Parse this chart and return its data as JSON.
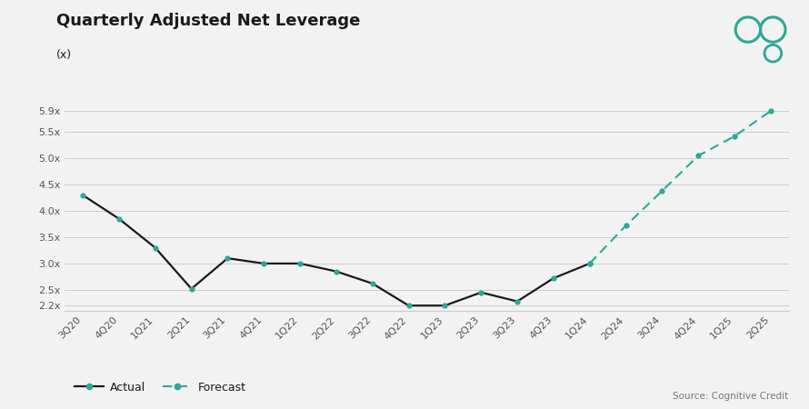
{
  "title": "Quarterly Adjusted Net Leverage",
  "subtitle": "(x)",
  "source": "Source: Cognitive Credit",
  "actual_labels": [
    "3Q20",
    "4Q20",
    "1Q21",
    "2Q21",
    "3Q21",
    "4Q21",
    "1Q22",
    "2Q22",
    "3Q22",
    "4Q22",
    "1Q23",
    "2Q23",
    "3Q23",
    "4Q23",
    "1Q24"
  ],
  "actual_values": [
    4.3,
    3.85,
    3.3,
    2.52,
    3.1,
    3.0,
    3.0,
    2.85,
    2.62,
    2.2,
    2.2,
    2.45,
    2.28,
    2.72,
    3.0
  ],
  "forecast_labels": [
    "1Q24",
    "2Q24",
    "3Q24",
    "4Q24",
    "1Q25",
    "2Q25"
  ],
  "forecast_values": [
    3.0,
    3.72,
    4.38,
    5.05,
    5.42,
    5.9
  ],
  "all_labels": [
    "3Q20",
    "4Q20",
    "1Q21",
    "2Q21",
    "3Q21",
    "4Q21",
    "1Q22",
    "2Q22",
    "3Q22",
    "4Q22",
    "1Q23",
    "2Q23",
    "3Q23",
    "4Q23",
    "1Q24",
    "2Q24",
    "3Q24",
    "4Q24",
    "1Q25",
    "2Q25"
  ],
  "yticks": [
    2.2,
    2.5,
    3.0,
    3.5,
    4.0,
    4.5,
    5.0,
    5.5,
    5.9
  ],
  "ylim": [
    2.1,
    6.3
  ],
  "line_color": "#2BA896",
  "actual_line_color": "#1A1A1A",
  "bg_color": "#F2F2F2",
  "plot_bg_color": "#F2F2F2",
  "gridline_color": "#CCCCCC",
  "text_color": "#1A1A1A",
  "title_fontsize": 13,
  "tick_fontsize": 8,
  "legend_actual_label": "Actual",
  "legend_forecast_label": "Forecast"
}
